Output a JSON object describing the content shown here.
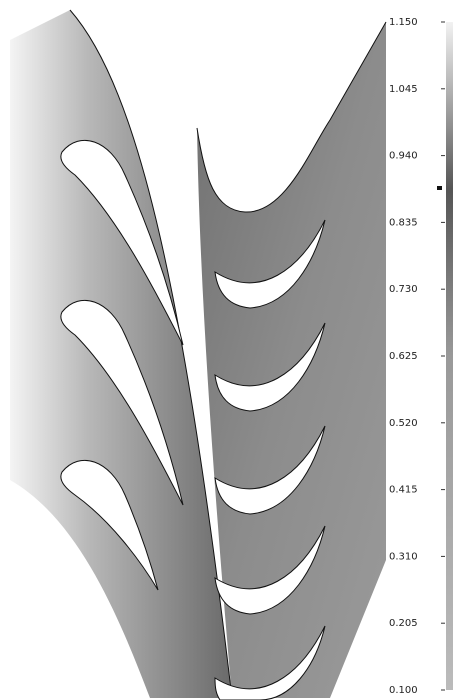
{
  "chart_data": {
    "type": "contour",
    "clim": [
      0.1,
      1.15
    ],
    "colorbar_ticks": [
      {
        "value": 1.15,
        "label": "1.150"
      },
      {
        "value": 1.045,
        "label": "1.045"
      },
      {
        "value": 0.94,
        "label": "0.940"
      },
      {
        "value": 0.835,
        "label": "0.835"
      },
      {
        "value": 0.73,
        "label": "0.730"
      },
      {
        "value": 0.625,
        "label": "0.625"
      },
      {
        "value": 0.52,
        "label": "0.520"
      },
      {
        "value": 0.415,
        "label": "0.415"
      },
      {
        "value": 0.31,
        "label": "0.310"
      },
      {
        "value": 0.205,
        "label": "0.205"
      },
      {
        "value": 0.1,
        "label": "0.100"
      }
    ]
  }
}
